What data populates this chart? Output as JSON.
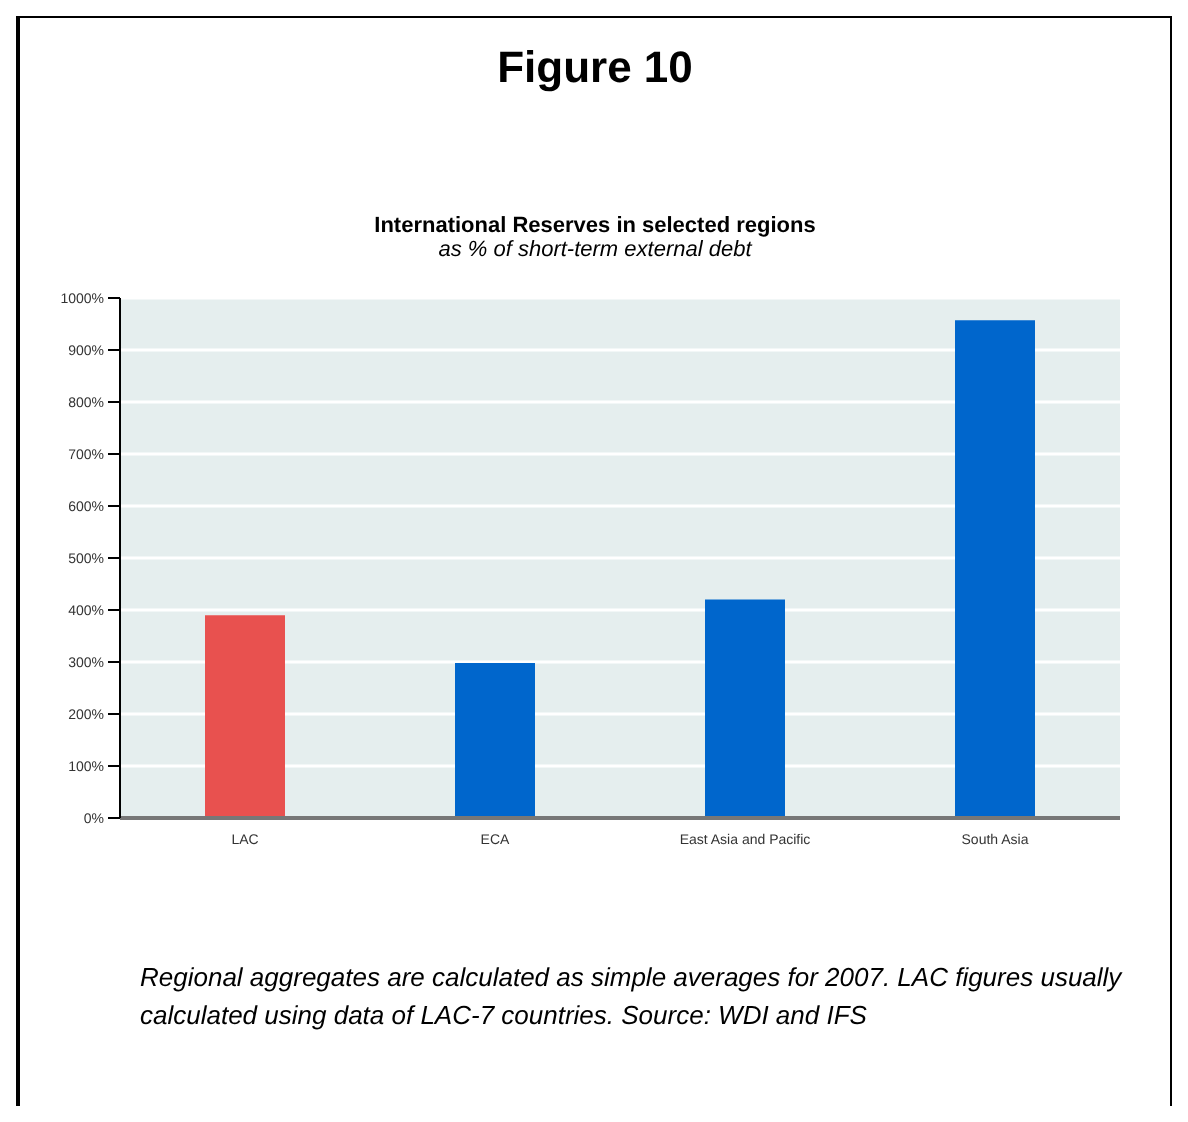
{
  "chart_data": {
    "type": "bar",
    "title": "International Reserves in selected regions",
    "subtitle": "as % of short-term external debt",
    "annotations": [
      "Figure 10",
      "Regional aggregates are calculated as simple averages for 2007. LAC figures usually calculated using data of LAC-7 countries. Source: WDI and IFS"
    ],
    "categories": [
      "LAC",
      "ECA",
      "East Asia and Pacific",
      "South Asia"
    ],
    "values": [
      390,
      298,
      420,
      957
    ],
    "colors": [
      "#e8514f",
      "#0066cc",
      "#0066cc",
      "#0066cc"
    ],
    "ylim": [
      0,
      1000
    ],
    "yticks": [
      {
        "value": 0,
        "label": "0%"
      },
      {
        "value": 100,
        "label": "100%"
      },
      {
        "value": 200,
        "label": "200%"
      },
      {
        "value": 300,
        "label": "300%"
      },
      {
        "value": 400,
        "label": "400%"
      },
      {
        "value": 500,
        "label": "500%"
      },
      {
        "value": 600,
        "label": "600%"
      },
      {
        "value": 700,
        "label": "700%"
      },
      {
        "value": 800,
        "label": "800%"
      },
      {
        "value": 900,
        "label": "900%"
      },
      {
        "value": 1000,
        "label": "1000%"
      }
    ],
    "grid": "y"
  }
}
